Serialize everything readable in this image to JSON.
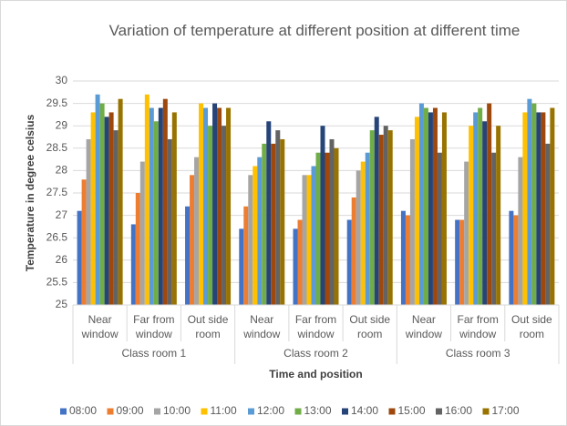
{
  "chart_data": {
    "type": "bar",
    "title": "Variation of temperature at different position at different time",
    "x_label": "Time and position",
    "y_label": "Temperature in degree celsius",
    "groups": [
      "Class room 1",
      "Class room 2",
      "Class room 3"
    ],
    "categories": [
      "Near window",
      "Far from window",
      "Out side room",
      "Near window",
      "Far from window",
      "Out side room",
      "Near window",
      "Far from window",
      "Out side room"
    ],
    "series": [
      {
        "name": "08:00",
        "color": "#4472c4",
        "values": [
          27.1,
          26.8,
          27.2,
          26.7,
          26.7,
          26.9,
          27.1,
          26.9,
          27.1
        ]
      },
      {
        "name": "09:00",
        "color": "#ed7d31",
        "values": [
          27.8,
          27.5,
          27.9,
          27.2,
          26.9,
          27.4,
          27.0,
          26.9,
          27.0
        ]
      },
      {
        "name": "10:00",
        "color": "#a5a5a5",
        "values": [
          28.7,
          28.2,
          28.3,
          27.9,
          27.9,
          28.0,
          28.7,
          28.2,
          28.3
        ]
      },
      {
        "name": "11:00",
        "color": "#ffc000",
        "values": [
          29.3,
          29.7,
          29.5,
          28.1,
          27.9,
          28.2,
          29.2,
          29.0,
          29.3
        ]
      },
      {
        "name": "12:00",
        "color": "#5b9bd5",
        "values": [
          29.7,
          29.4,
          29.4,
          28.3,
          28.1,
          28.4,
          29.5,
          29.3,
          29.6
        ]
      },
      {
        "name": "13:00",
        "color": "#70ad47",
        "values": [
          29.5,
          29.1,
          29.0,
          28.6,
          28.4,
          28.9,
          29.4,
          29.4,
          29.5
        ]
      },
      {
        "name": "14:00",
        "color": "#264478",
        "values": [
          29.2,
          29.4,
          29.5,
          29.1,
          29.0,
          29.2,
          29.3,
          29.1,
          29.3
        ]
      },
      {
        "name": "15:00",
        "color": "#9e480e",
        "values": [
          29.3,
          29.6,
          29.4,
          28.6,
          28.4,
          28.8,
          29.4,
          29.5,
          29.3
        ]
      },
      {
        "name": "16:00",
        "color": "#636363",
        "values": [
          28.9,
          28.7,
          29.0,
          28.9,
          28.7,
          29.0,
          28.4,
          28.4,
          28.6
        ]
      },
      {
        "name": "17:00",
        "color": "#997300",
        "values": [
          29.6,
          29.3,
          29.4,
          28.7,
          28.5,
          28.9,
          29.3,
          29.0,
          29.4
        ]
      }
    ],
    "ylim": [
      25,
      30
    ],
    "yticks": [
      25,
      25.5,
      26,
      26.5,
      27,
      27.5,
      28,
      28.5,
      29,
      29.5,
      30
    ],
    "grid": true,
    "legend": "bottom"
  }
}
